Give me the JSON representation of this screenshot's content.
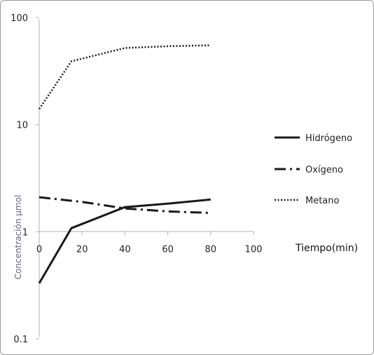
{
  "chart_data": {
    "type": "line",
    "y_scale": "log",
    "ylim": [
      0.1,
      100
    ],
    "xlim": [
      0,
      100
    ],
    "xlabel": "Tiempo(min)",
    "ylabel": "Concentración μmol",
    "x_ticks": [
      "0",
      "20",
      "40",
      "60",
      "80",
      "100"
    ],
    "y_ticks": [
      "0.1",
      "1",
      "10",
      "100"
    ],
    "grid": false,
    "legend_position": "right",
    "series": [
      {
        "name": "Hidrógeno",
        "style": "solid",
        "x": [
          0,
          15,
          40,
          60,
          80
        ],
        "y": [
          0.33,
          1.08,
          1.7,
          1.83,
          2.0
        ]
      },
      {
        "name": "Oxígeno",
        "style": "dash-dot",
        "x": [
          0,
          20,
          40,
          60,
          80
        ],
        "y": [
          2.1,
          1.9,
          1.65,
          1.55,
          1.5
        ]
      },
      {
        "name": "Metano",
        "style": "dotted",
        "x": [
          0,
          15,
          40,
          60,
          80
        ],
        "y": [
          14,
          39,
          52,
          54,
          55
        ]
      }
    ]
  }
}
